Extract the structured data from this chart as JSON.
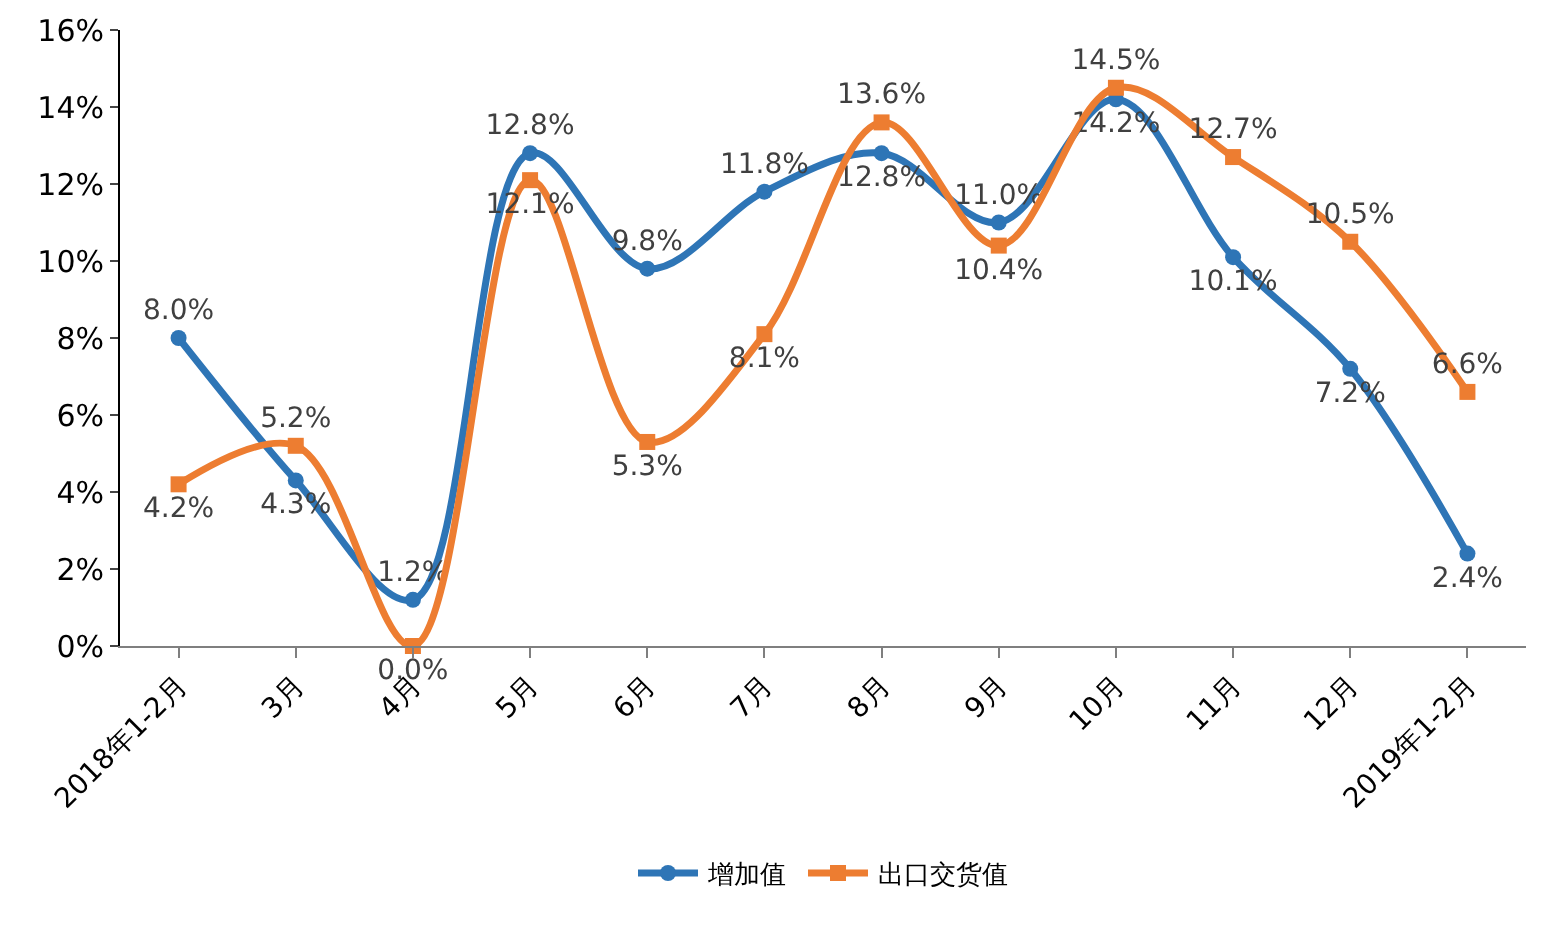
{
  "chart_data": {
    "type": "line",
    "categories": [
      "2018年1-2月",
      "3月",
      "4月",
      "5月",
      "6月",
      "7月",
      "8月",
      "9月",
      "10月",
      "11月",
      "12月",
      "2019年1-2月"
    ],
    "series": [
      {
        "name": "增加值",
        "color": "#2e75b6",
        "marker": "circle",
        "values": [
          8.0,
          4.3,
          1.2,
          12.8,
          9.8,
          11.8,
          12.8,
          11.0,
          14.2,
          10.1,
          7.2,
          2.4
        ],
        "value_labels": [
          "8.0%",
          "4.3%",
          "1.2%",
          "12.8%",
          "9.8%",
          "11.8%",
          "12.8%",
          "11.0%",
          "14.2%",
          "10.1%",
          "7.2%",
          "2.4%"
        ]
      },
      {
        "name": "出口交货值",
        "color": "#ed7d31",
        "marker": "square",
        "values": [
          4.2,
          5.2,
          0.0,
          12.1,
          5.3,
          8.1,
          13.6,
          10.4,
          14.5,
          12.7,
          10.5,
          6.6
        ],
        "value_labels": [
          "4.2%",
          "5.2%",
          "0.0%",
          "12.1%",
          "5.3%",
          "8.1%",
          "13.6%",
          "10.4%",
          "14.5%",
          "12.7%",
          "10.5%",
          "6.6%"
        ]
      }
    ],
    "ylim": [
      0,
      16
    ],
    "yticks": [
      {
        "value": 0,
        "label": "0%"
      },
      {
        "value": 2,
        "label": "2%"
      },
      {
        "value": 4,
        "label": "4%"
      },
      {
        "value": 6,
        "label": "6%"
      },
      {
        "value": 8,
        "label": "8%"
      },
      {
        "value": 10,
        "label": "10%"
      },
      {
        "value": 12,
        "label": "12%"
      },
      {
        "value": 14,
        "label": "14%"
      },
      {
        "value": 16,
        "label": "16%"
      }
    ],
    "grid": false,
    "legend": "bottom"
  }
}
